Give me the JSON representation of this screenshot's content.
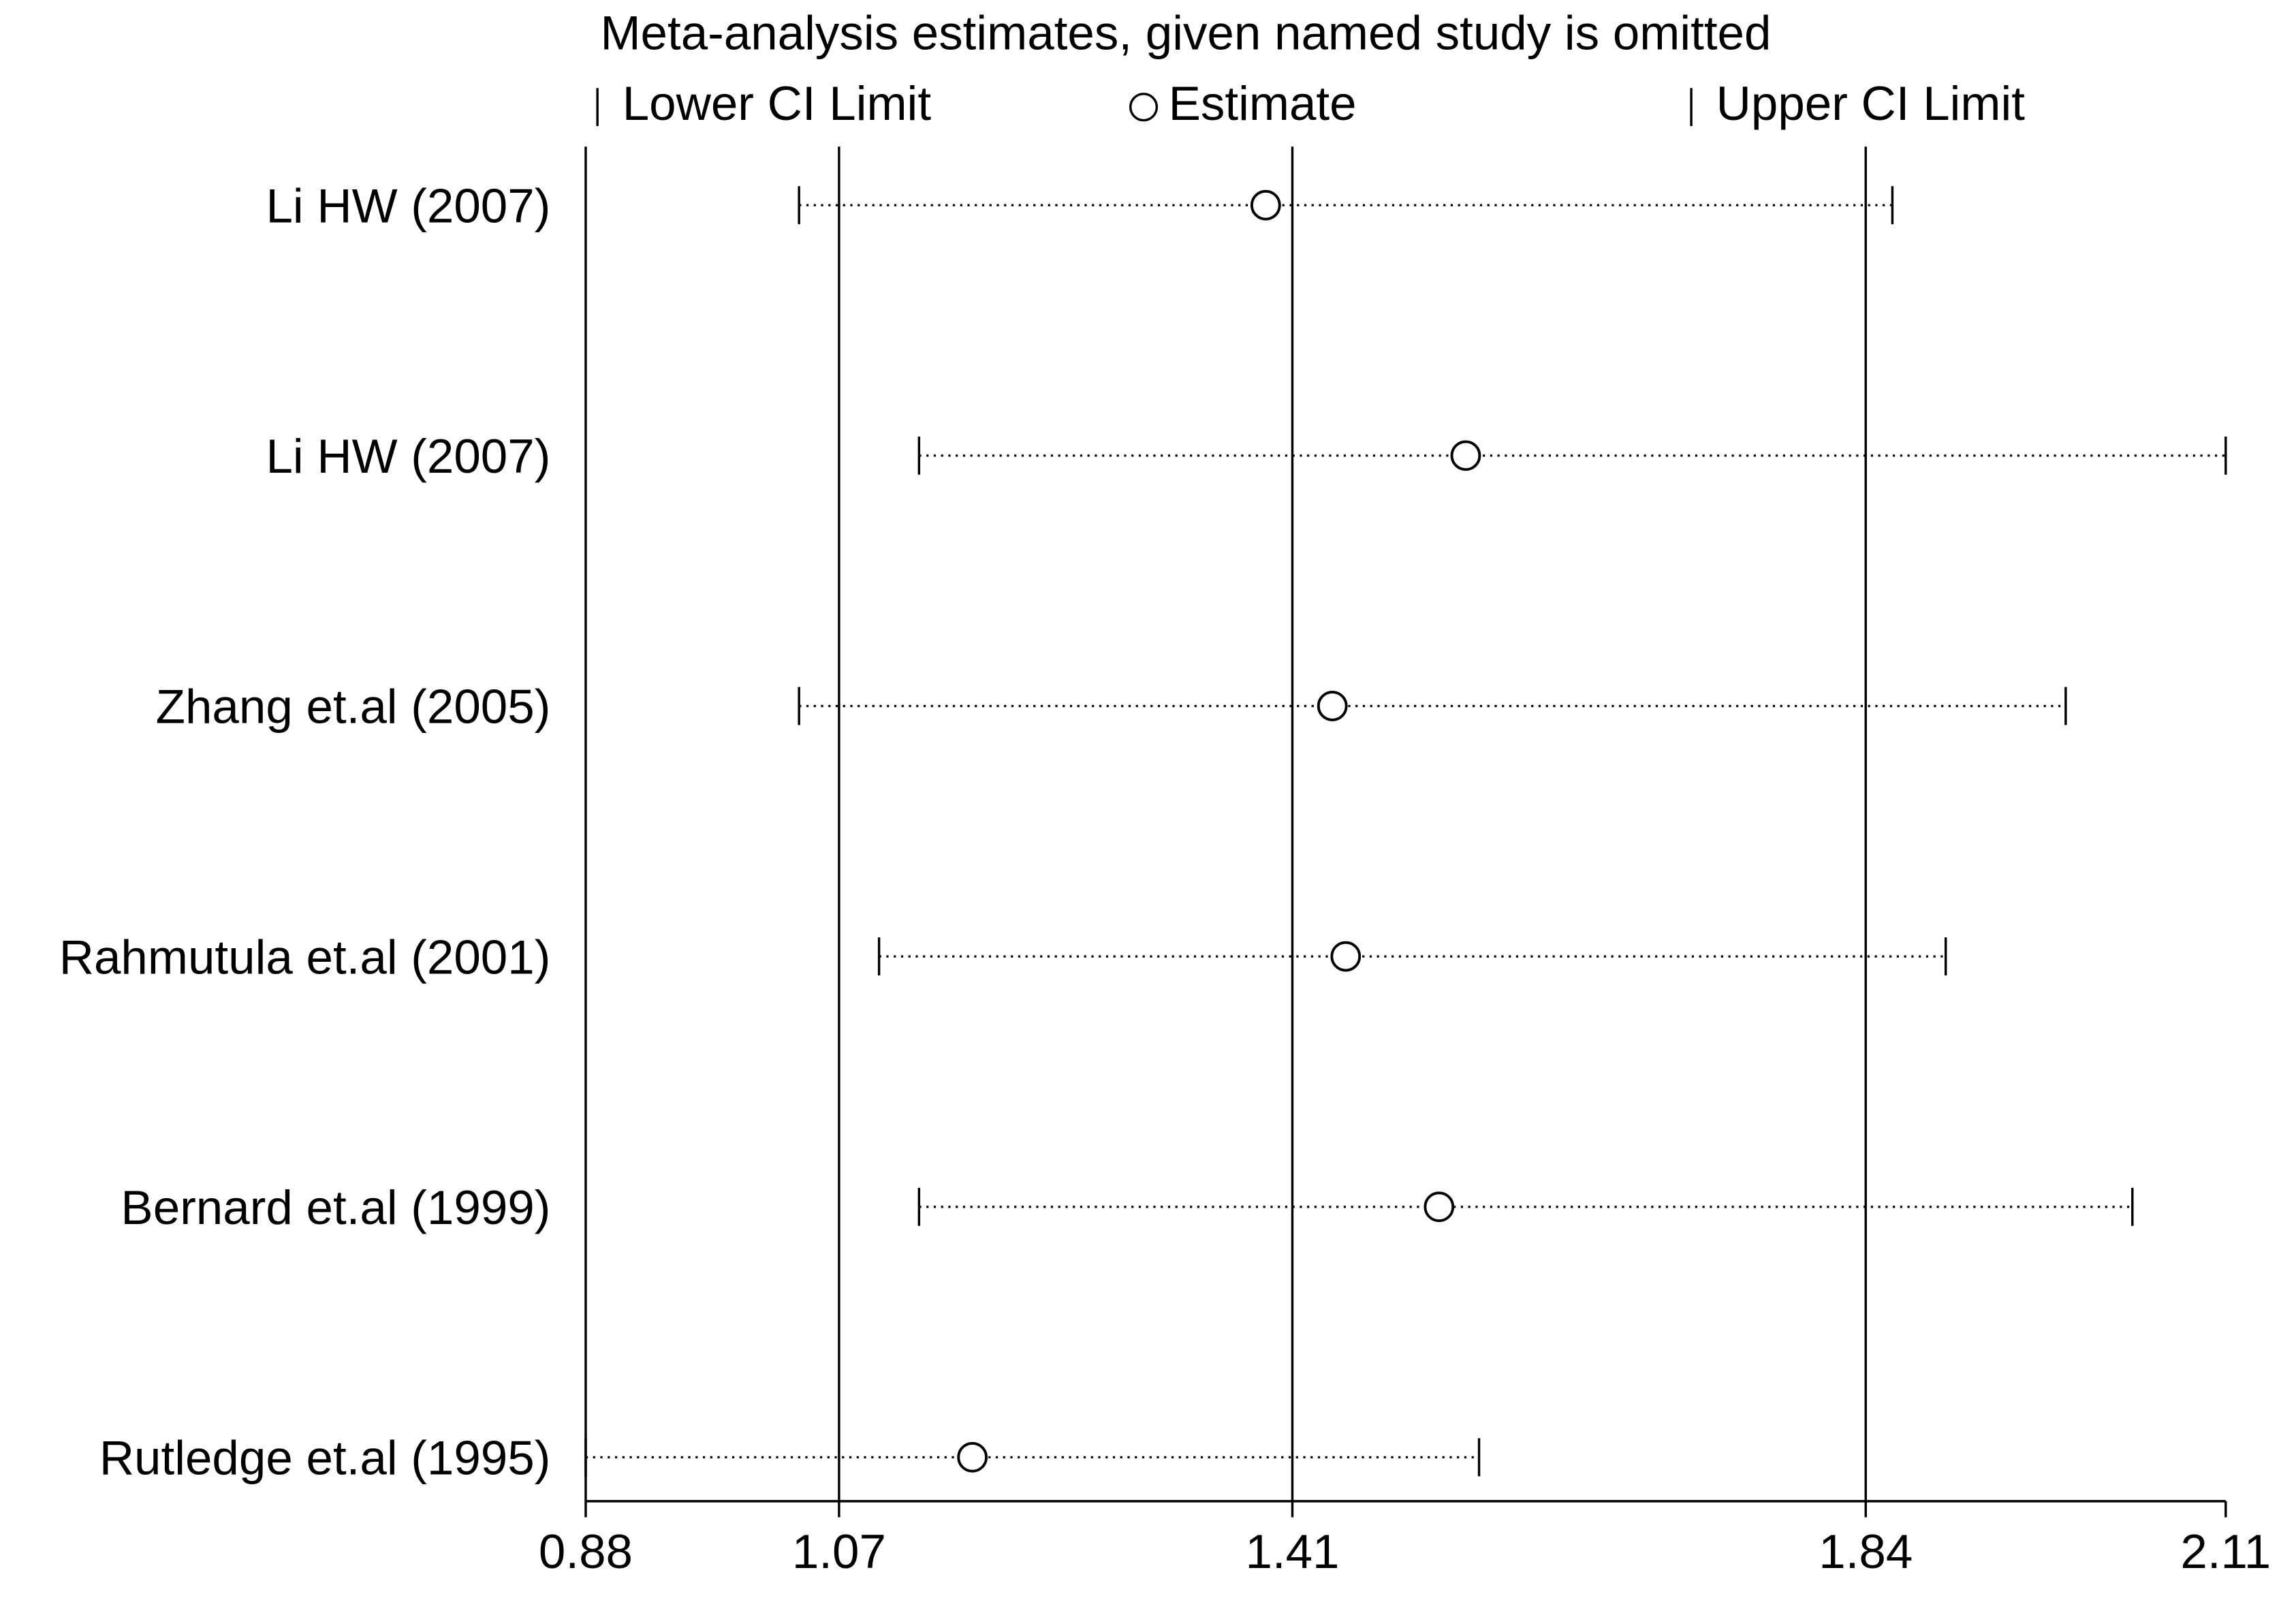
{
  "chart_data": {
    "type": "sensitivity",
    "title": "Meta-analysis estimates, given named study is omitted",
    "categories": [
      "Li HW (2007)",
      "Li HW (2007)",
      "Zhang et.al (2005)",
      "Rahmutula et.al (2001)",
      "Bernard et.al (1999)",
      "Rutledge et.al (1995)"
    ],
    "series": [
      {
        "name": "Lower CI Limit",
        "color": "#000000",
        "values": [
          1.04,
          1.13,
          1.04,
          1.1,
          1.13,
          0.88
        ]
      },
      {
        "name": "Estimate",
        "color": "#000000",
        "values": [
          1.39,
          1.54,
          1.44,
          1.45,
          1.52,
          1.17
        ]
      },
      {
        "name": "Upper CI Limit",
        "color": "#000000",
        "values": [
          1.86,
          2.11,
          1.99,
          1.9,
          2.04,
          1.55
        ]
      }
    ],
    "xlim": [
      0.88,
      2.11
    ],
    "xticks": [
      0.88,
      1.07,
      1.41,
      1.84,
      2.11
    ],
    "grid": true
  }
}
